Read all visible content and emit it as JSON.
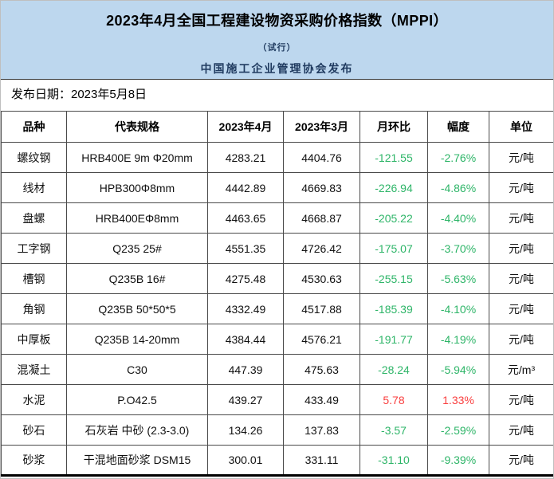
{
  "banner": {
    "title": "2023年4月全国工程建设物资采购价格指数（MPPI）",
    "subtitle": "（试行）",
    "publisher": "中国施工企业管理协会发布"
  },
  "release": {
    "date_label": "发布日期：2023年5月8日"
  },
  "colors": {
    "banner_bg": "#BDD7EE",
    "down_green": "#2eb568",
    "up_red": "#f93e3e",
    "grid_border": "#4a4a4a"
  },
  "table": {
    "columns": [
      "品种",
      "代表规格",
      "2023年4月",
      "2023年3月",
      "月环比",
      "幅度",
      "单位"
    ],
    "rows": [
      {
        "name": "螺纹钢",
        "spec": "HRB400E 9m Φ20mm",
        "apr": "4283.21",
        "mar": "4404.76",
        "mom": "-121.55",
        "pct": "-2.76%",
        "unit": "元/吨",
        "trend": "down"
      },
      {
        "name": "线材",
        "spec": "HPB300Φ8mm",
        "apr": "4442.89",
        "mar": "4669.83",
        "mom": "-226.94",
        "pct": "-4.86%",
        "unit": "元/吨",
        "trend": "down"
      },
      {
        "name": "盘螺",
        "spec": "HRB400EΦ8mm",
        "apr": "4463.65",
        "mar": "4668.87",
        "mom": "-205.22",
        "pct": "-4.40%",
        "unit": "元/吨",
        "trend": "down"
      },
      {
        "name": "工字钢",
        "spec": "Q235 25#",
        "apr": "4551.35",
        "mar": "4726.42",
        "mom": "-175.07",
        "pct": "-3.70%",
        "unit": "元/吨",
        "trend": "down"
      },
      {
        "name": "槽钢",
        "spec": "Q235B 16#",
        "apr": "4275.48",
        "mar": "4530.63",
        "mom": "-255.15",
        "pct": "-5.63%",
        "unit": "元/吨",
        "trend": "down"
      },
      {
        "name": "角钢",
        "spec": "Q235B 50*50*5",
        "apr": "4332.49",
        "mar": "4517.88",
        "mom": "-185.39",
        "pct": "-4.10%",
        "unit": "元/吨",
        "trend": "down"
      },
      {
        "name": "中厚板",
        "spec": "Q235B 14-20mm",
        "apr": "4384.44",
        "mar": "4576.21",
        "mom": "-191.77",
        "pct": "-4.19%",
        "unit": "元/吨",
        "trend": "down"
      },
      {
        "name": "混凝土",
        "spec": "C30",
        "apr": "447.39",
        "mar": "475.63",
        "mom": "-28.24",
        "pct": "-5.94%",
        "unit": "元/m³",
        "trend": "down"
      },
      {
        "name": "水泥",
        "spec": "P.O42.5",
        "apr": "439.27",
        "mar": "433.49",
        "mom": "5.78",
        "pct": "1.33%",
        "unit": "元/吨",
        "trend": "up"
      },
      {
        "name": "砂石",
        "spec": "石灰岩 中砂 (2.3-3.0)",
        "apr": "134.26",
        "mar": "137.83",
        "mom": "-3.57",
        "pct": "-2.59%",
        "unit": "元/吨",
        "trend": "down"
      },
      {
        "name": "砂浆",
        "spec": "干混地面砂浆 DSM15",
        "apr": "300.01",
        "mar": "331.11",
        "mom": "-31.10",
        "pct": "-9.39%",
        "unit": "元/吨",
        "trend": "down"
      }
    ]
  }
}
